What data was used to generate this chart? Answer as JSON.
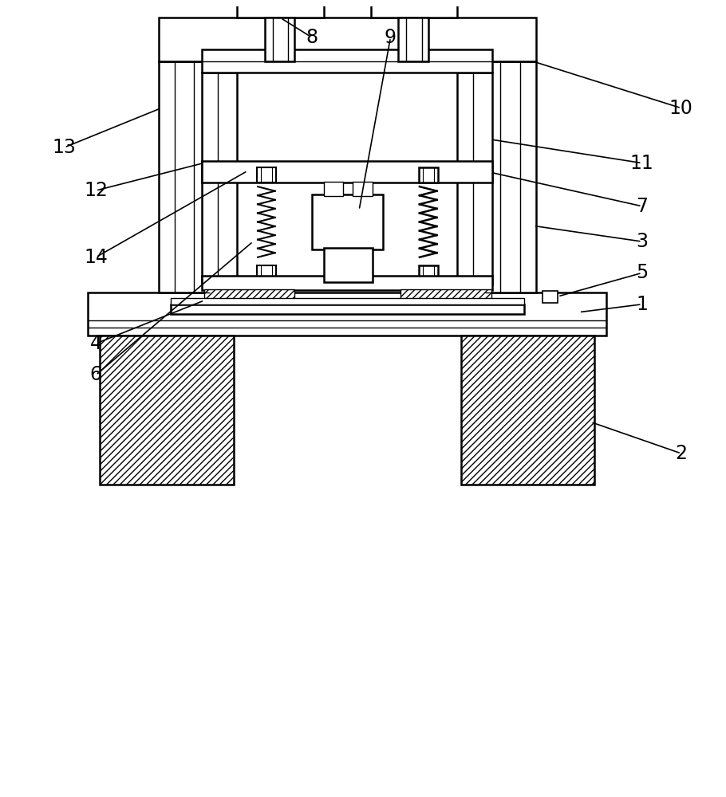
{
  "background_color": "#ffffff",
  "line_color": "#000000",
  "fig_width": 9.1,
  "fig_height": 10.0,
  "label_fontsize": 17
}
